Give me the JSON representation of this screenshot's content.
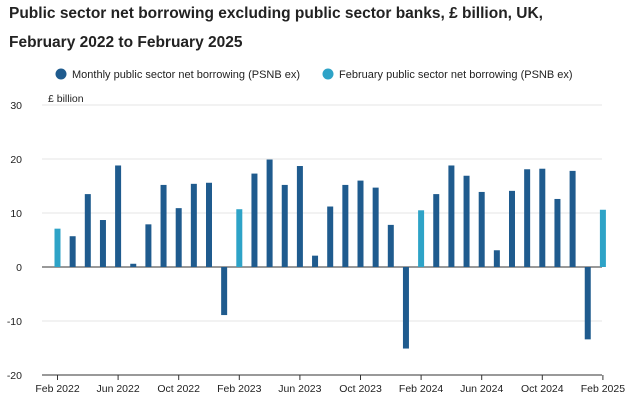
{
  "colors": {
    "monthly": "#1f5b8e",
    "february": "#2ea3c7",
    "grid": "#e4e4e4",
    "axis": "#333333",
    "text": "#222222"
  },
  "chart_data": {
    "type": "bar",
    "title_line1": "Public sector net borrowing excluding public sector banks, £ billion, UK,",
    "title_line2": "February 2022 to February 2025",
    "ylabel": "£ billion",
    "ylim": [
      -20,
      30
    ],
    "yticks": [
      -20,
      -10,
      0,
      10,
      20,
      30
    ],
    "grid": true,
    "legend_placement": "top",
    "series": [
      {
        "name": "Monthly public sector net borrowing (PSNB ex)",
        "color": "#1f5b8e"
      },
      {
        "name": "February public sector net borrowing (PSNB ex)",
        "color": "#2ea3c7"
      }
    ],
    "xticklabels": [
      {
        "index": 0,
        "label": "Feb 2022"
      },
      {
        "index": 4,
        "label": "Jun 2022"
      },
      {
        "index": 8,
        "label": "Oct 2022"
      },
      {
        "index": 12,
        "label": "Feb 2023"
      },
      {
        "index": 16,
        "label": "Jun 2023"
      },
      {
        "index": 20,
        "label": "Oct 2023"
      },
      {
        "index": 24,
        "label": "Feb 2024"
      },
      {
        "index": 28,
        "label": "Jun 2024"
      },
      {
        "index": 32,
        "label": "Oct 2024"
      },
      {
        "index": 36,
        "label": "Feb 2025"
      }
    ],
    "categories": [
      "Feb 2022",
      "Mar 2022",
      "Apr 2022",
      "May 2022",
      "Jun 2022",
      "Jul 2022",
      "Aug 2022",
      "Sep 2022",
      "Oct 2022",
      "Nov 2022",
      "Dec 2022",
      "Jan 2023",
      "Feb 2023",
      "Mar 2023",
      "Apr 2023",
      "May 2023",
      "Jun 2023",
      "Jul 2023",
      "Aug 2023",
      "Sep 2023",
      "Oct 2023",
      "Nov 2023",
      "Dec 2023",
      "Jan 2024",
      "Feb 2024",
      "Mar 2024",
      "Apr 2024",
      "May 2024",
      "Jun 2024",
      "Jul 2024",
      "Aug 2024",
      "Sep 2024",
      "Oct 2024",
      "Nov 2024",
      "Dec 2024",
      "Jan 2025",
      "Feb 2025"
    ],
    "values": [
      7.1,
      5.7,
      13.5,
      8.7,
      18.8,
      0.6,
      7.9,
      15.2,
      10.9,
      15.4,
      15.6,
      -8.9,
      10.7,
      17.3,
      19.9,
      15.2,
      18.7,
      2.1,
      11.2,
      15.2,
      16.0,
      14.7,
      7.8,
      -15.1,
      10.5,
      13.5,
      18.8,
      16.9,
      13.9,
      3.1,
      14.1,
      18.1,
      18.2,
      12.6,
      17.8,
      -13.4,
      10.6
    ],
    "february_indices": [
      0,
      12,
      24,
      36
    ]
  }
}
